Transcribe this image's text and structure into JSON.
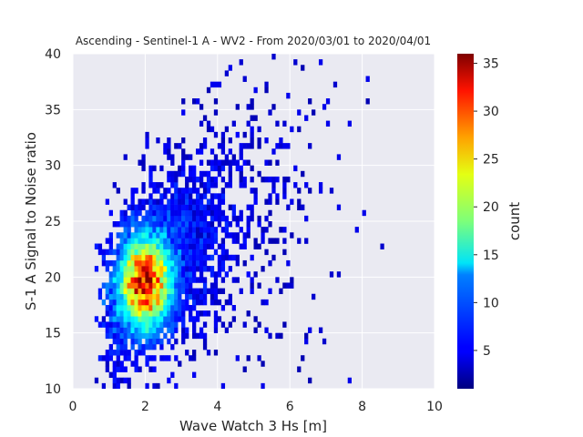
{
  "chart_data": {
    "type": "heatmap",
    "title": "Ascending - Sentinel-1 A - WV2 - From 2020/03/01 to 2020/04/01",
    "xlabel": "Wave Watch 3 Hs [m]",
    "ylabel": "S-1 A Signal to Noise ratio",
    "xlim": [
      0,
      10
    ],
    "ylim": [
      10,
      40
    ],
    "x_ticks": [
      "0",
      "2",
      "4",
      "6",
      "8",
      "10"
    ],
    "y_ticks": [
      "10",
      "15",
      "20",
      "25",
      "30",
      "35",
      "40"
    ],
    "grid": true,
    "colormap": "jet",
    "colorbar": {
      "label": "count",
      "range": [
        1,
        36
      ],
      "ticks": [
        "5",
        "10",
        "15",
        "20",
        "25",
        "30",
        "35"
      ]
    },
    "bin_size": {
      "x": 0.1,
      "y": 0.5
    },
    "density_peak": {
      "x": 2.0,
      "y": 19.5,
      "count": 36
    }
  },
  "colors": {
    "plot_background": "#eaeaf2",
    "grid": "#ffffff",
    "text": "#262626"
  }
}
